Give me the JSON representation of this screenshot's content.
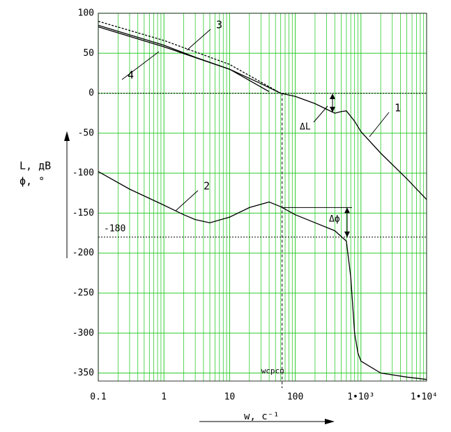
{
  "chart_data": {
    "type": "line",
    "x_label": "w, c⁻¹",
    "y_labels": [
      "L, дB",
      "ϕ, °"
    ],
    "xlog": true,
    "grid": true,
    "xlim": [
      0.1,
      10000
    ],
    "ylim": [
      -360,
      100
    ],
    "xticks": [
      0.1,
      1,
      10,
      100,
      {
        "value": 1000,
        "label": "1•10³"
      },
      {
        "value": 10000,
        "label": "1•10⁴"
      }
    ],
    "yticks": [
      100,
      50,
      0,
      -50,
      -100,
      -150,
      -200,
      -250,
      -300,
      -350
    ],
    "series": [
      {
        "name": "1",
        "color": "#000000",
        "x": [
          0.1,
          0.3,
          1,
          3,
          10,
          30,
          60,
          100,
          200,
          300,
          400,
          500,
          600,
          800,
          1000,
          2000,
          5000,
          10000
        ],
        "values": [
          85,
          73,
          60,
          45,
          30,
          12,
          0,
          -4,
          -13,
          -20,
          -25,
          -23,
          -22,
          -35,
          -48,
          -75,
          -107,
          -133
        ]
      },
      {
        "name": "2",
        "color": "#000000",
        "x": [
          0.1,
          0.3,
          1,
          2,
          3,
          5,
          10,
          20,
          40,
          60,
          100,
          200,
          400,
          600,
          700,
          800,
          900,
          1000,
          2000,
          5000,
          10000
        ],
        "values": [
          -98,
          -120,
          -140,
          -152,
          -158,
          -162,
          -155,
          -143,
          -136,
          -142,
          -152,
          -162,
          -172,
          -185,
          -230,
          -300,
          -325,
          -335,
          -350,
          -355,
          -358
        ]
      },
      {
        "name": "3",
        "color": "#000000",
        "dashed": true,
        "x": [
          0.1,
          1,
          10,
          60
        ],
        "values": [
          90,
          66,
          36,
          0
        ]
      },
      {
        "name": "4",
        "color": "#000000",
        "x": [
          0.1,
          1,
          10,
          40
        ],
        "values": [
          83,
          58,
          30,
          2
        ]
      }
    ],
    "reference_lines": [
      0,
      -180
    ],
    "crossover": 63,
    "crossover_label": "wсрсп",
    "annotations": [
      "ΔL",
      "Δϕ"
    ]
  }
}
